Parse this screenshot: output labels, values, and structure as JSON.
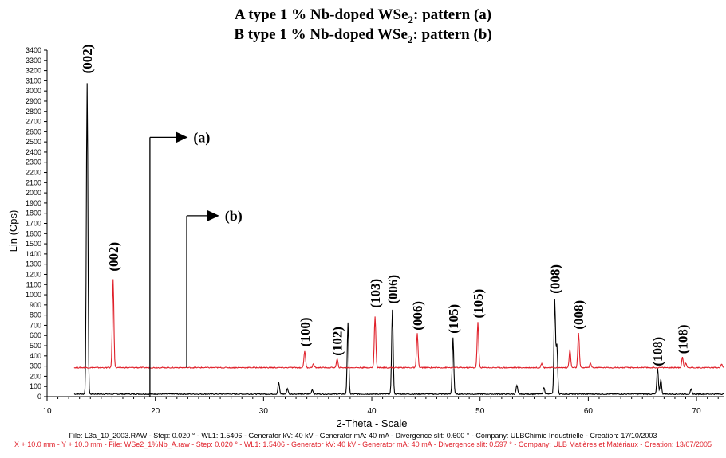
{
  "chart_data": {
    "type": "line",
    "title_lines": [
      {
        "prefix": "A type 1 % Nb-doped WSe",
        "sub": "2",
        "suffix": ": pattern (a)"
      },
      {
        "prefix": "B type 1 % Nb-doped WSe",
        "sub": "2",
        "suffix": ": pattern (b)"
      }
    ],
    "xlabel": "2-Theta - Scale",
    "ylabel": "Lin (Cps)",
    "xlim": [
      10,
      72.5
    ],
    "ylim": [
      0,
      3400
    ],
    "xticks": [
      10,
      20,
      30,
      40,
      50,
      60,
      70
    ],
    "yticks": [
      0,
      100,
      200,
      300,
      400,
      500,
      600,
      700,
      800,
      900,
      1000,
      1100,
      1200,
      1300,
      1400,
      1500,
      1600,
      1700,
      1800,
      1900,
      2000,
      2100,
      2200,
      2300,
      2400,
      2500,
      2600,
      2700,
      2800,
      2900,
      3000,
      3100,
      3200,
      3300,
      3400
    ],
    "series": [
      {
        "color": "#000000",
        "x_start": 12.5,
        "baseline": 25,
        "peaks": [
          {
            "x": 13.7,
            "y": 3080
          },
          {
            "x": 31.4,
            "y": 140
          },
          {
            "x": 32.2,
            "y": 80
          },
          {
            "x": 34.5,
            "y": 70
          },
          {
            "x": 37.8,
            "y": 730
          },
          {
            "x": 41.9,
            "y": 850
          },
          {
            "x": 47.5,
            "y": 580
          },
          {
            "x": 53.4,
            "y": 110
          },
          {
            "x": 55.9,
            "y": 90
          },
          {
            "x": 56.9,
            "y": 950
          },
          {
            "x": 57.1,
            "y": 500
          },
          {
            "x": 66.4,
            "y": 280
          },
          {
            "x": 66.7,
            "y": 170
          },
          {
            "x": 69.5,
            "y": 70
          }
        ]
      },
      {
        "color": "#e0202a",
        "x_start": 12.5,
        "baseline": 285,
        "peaks": [
          {
            "x": 16.1,
            "y": 1150
          },
          {
            "x": 33.8,
            "y": 450
          },
          {
            "x": 34.6,
            "y": 320
          },
          {
            "x": 36.8,
            "y": 370
          },
          {
            "x": 40.3,
            "y": 790
          },
          {
            "x": 44.2,
            "y": 620
          },
          {
            "x": 49.8,
            "y": 730
          },
          {
            "x": 55.7,
            "y": 330
          },
          {
            "x": 58.3,
            "y": 460
          },
          {
            "x": 59.1,
            "y": 620
          },
          {
            "x": 60.2,
            "y": 330
          },
          {
            "x": 68.7,
            "y": 390
          },
          {
            "x": 69.0,
            "y": 330
          },
          {
            "x": 72.3,
            "y": 320
          }
        ]
      }
    ],
    "peak_labels": [
      {
        "text": "(002)",
        "x": 13.7,
        "y": 3170
      },
      {
        "text": "(002)",
        "x": 16.1,
        "y": 1230
      },
      {
        "text": "(100)",
        "x": 33.8,
        "y": 490
      },
      {
        "text": "(102)",
        "x": 36.8,
        "y": 400
      },
      {
        "text": "(103)",
        "x": 40.3,
        "y": 870
      },
      {
        "text": "(006)",
        "x": 41.9,
        "y": 910
      },
      {
        "text": "(006)",
        "x": 44.2,
        "y": 650
      },
      {
        "text": "(105)",
        "x": 47.5,
        "y": 620
      },
      {
        "text": "(105)",
        "x": 49.8,
        "y": 770
      },
      {
        "text": "(008)",
        "x": 56.9,
        "y": 1010
      },
      {
        "text": "(008)",
        "x": 59.1,
        "y": 660
      },
      {
        "text": "(108)",
        "x": 66.4,
        "y": 300
      },
      {
        "text": "(108)",
        "x": 68.7,
        "y": 420
      }
    ],
    "markers": [
      {
        "text": "(a)",
        "x": 19.5,
        "y_bottom": 0,
        "y_top": 2545,
        "arrow_to_x": 23.0
      },
      {
        "text": "(b)",
        "x": 22.9,
        "y_bottom": 285,
        "y_top": 1775,
        "arrow_to_x": 25.9
      }
    ]
  },
  "footer": {
    "line_a": "File: L3a_10_2003.RAW - Step: 0.020 ° - WL1: 1.5406 - Generator kV: 40 kV - Generator mA: 40 mA - Divergence slit: 0.600 ° - Company: ULBChimie Industrielle - Creation: 17/10/2003",
    "line_b": "X + 10.0 mm - Y + 10.0 mm - File: WSe2_1%Nb_A.raw - Step: 0.020 ° - WL1: 1.5406 - Generator kV: 40 kV - Generator mA: 40 mA - Divergence slit: 0.597 ° - Company: ULB Matières et Matériaux - Creation: 13/07/2005"
  }
}
